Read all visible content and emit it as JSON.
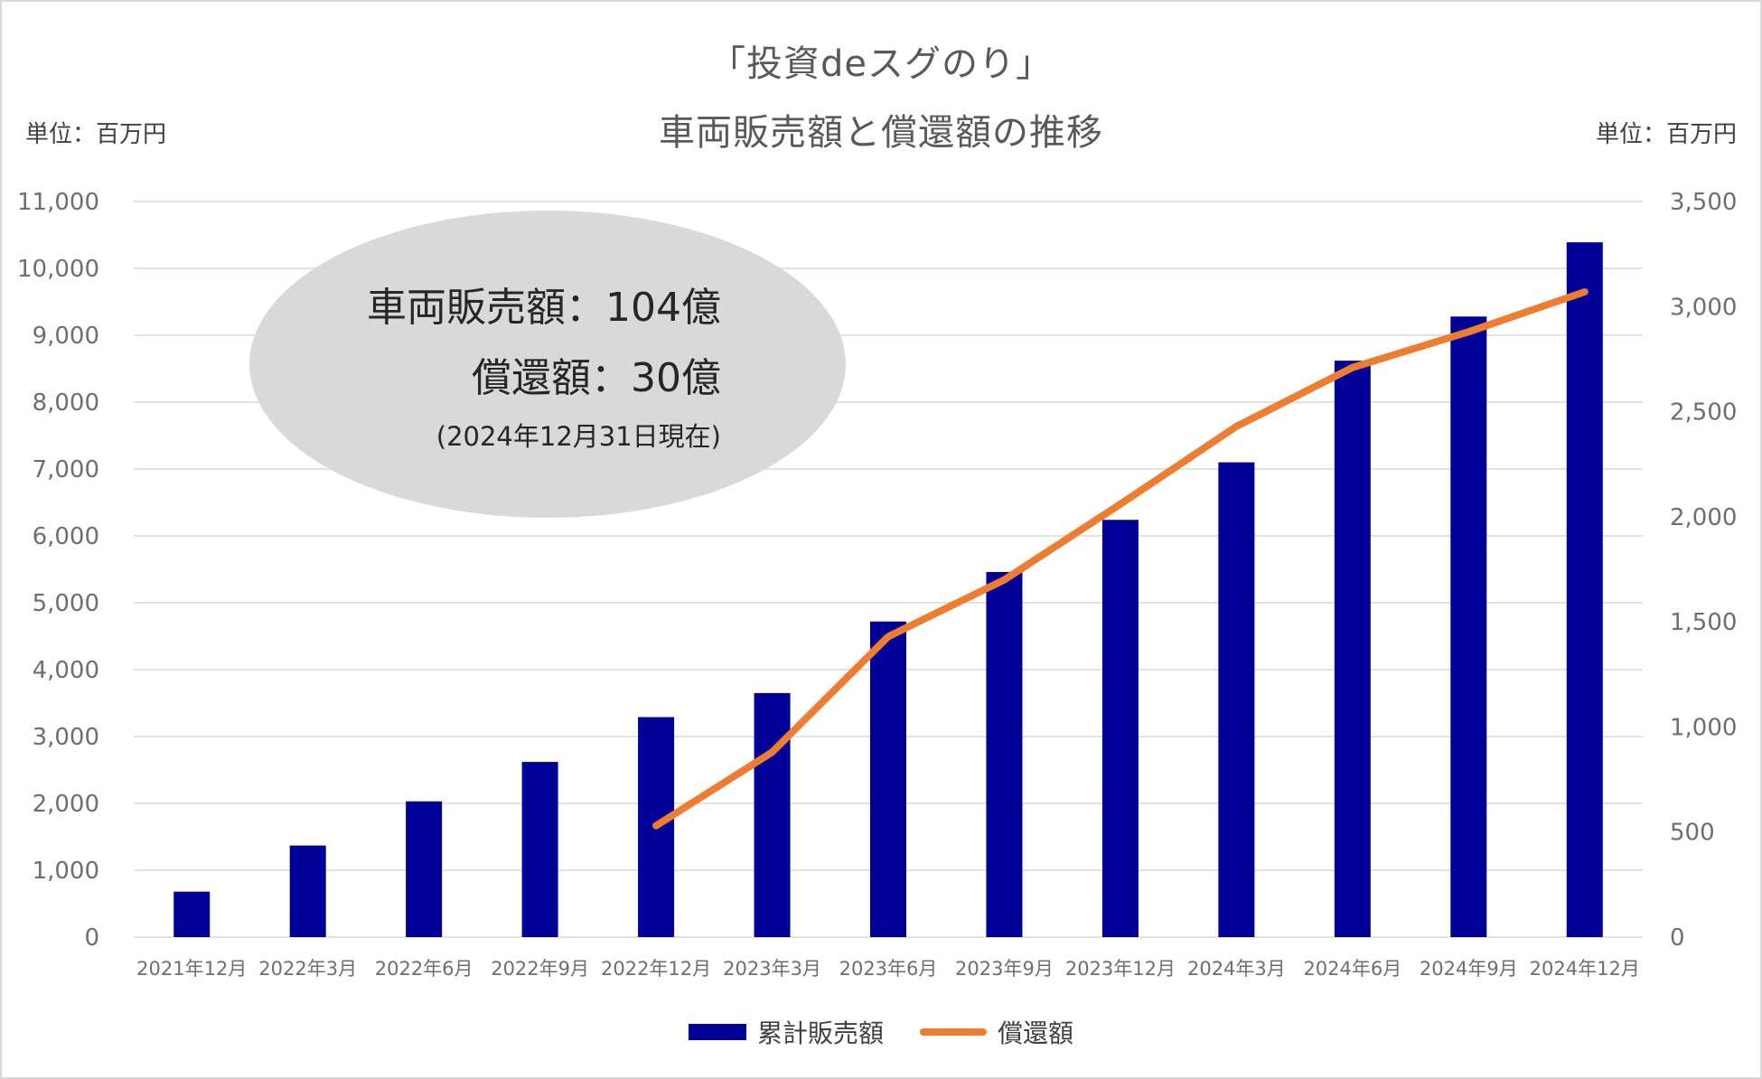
{
  "titles": {
    "line1": "「投資deスグのり」",
    "line2": "車両販売額と償還額の推移"
  },
  "units": {
    "left": "単位：百万円",
    "right": "単位：百万円"
  },
  "callout": {
    "line1": "車両販売額：104億",
    "line2": "償還額：30億",
    "line3": "(2024年12月31日現在)"
  },
  "legend": {
    "bar_label": "累計販売額",
    "line_label": "償還額"
  },
  "colors": {
    "bar": "#000099",
    "line": "#ed7d31",
    "grid": "#d9d9d9",
    "callout_bg": "#d9d9d9"
  },
  "chart_data": {
    "type": "bar",
    "categories": [
      "2021年12月",
      "2022年3月",
      "2022年6月",
      "2022年9月",
      "2022年12月",
      "2023年3月",
      "2023年6月",
      "2023年9月",
      "2023年12月",
      "2024年3月",
      "2024年6月",
      "2024年9月",
      "2024年12月"
    ],
    "series": [
      {
        "name": "累計販売額",
        "type": "bar",
        "axis": "left",
        "values": [
          680,
          1370,
          2030,
          2620,
          3290,
          3650,
          4720,
          5460,
          6240,
          7100,
          8620,
          9280,
          10390
        ]
      },
      {
        "name": "償還額",
        "type": "line",
        "axis": "right",
        "values": [
          null,
          null,
          null,
          null,
          530,
          880,
          1430,
          1700,
          2060,
          2430,
          2710,
          2880,
          3070
        ]
      }
    ],
    "y_left": {
      "ylim": [
        0,
        11000
      ],
      "ticks": [
        "0",
        "1,000",
        "2,000",
        "3,000",
        "4,000",
        "5,000",
        "6,000",
        "7,000",
        "8,000",
        "9,000",
        "10,000",
        "11,000"
      ]
    },
    "y_right": {
      "ylim": [
        0,
        3500
      ],
      "ticks": [
        "0",
        "500",
        "1,000",
        "1,500",
        "2,000",
        "2,500",
        "3,000",
        "3,500"
      ]
    },
    "grid": true,
    "legend_position": "bottom"
  }
}
